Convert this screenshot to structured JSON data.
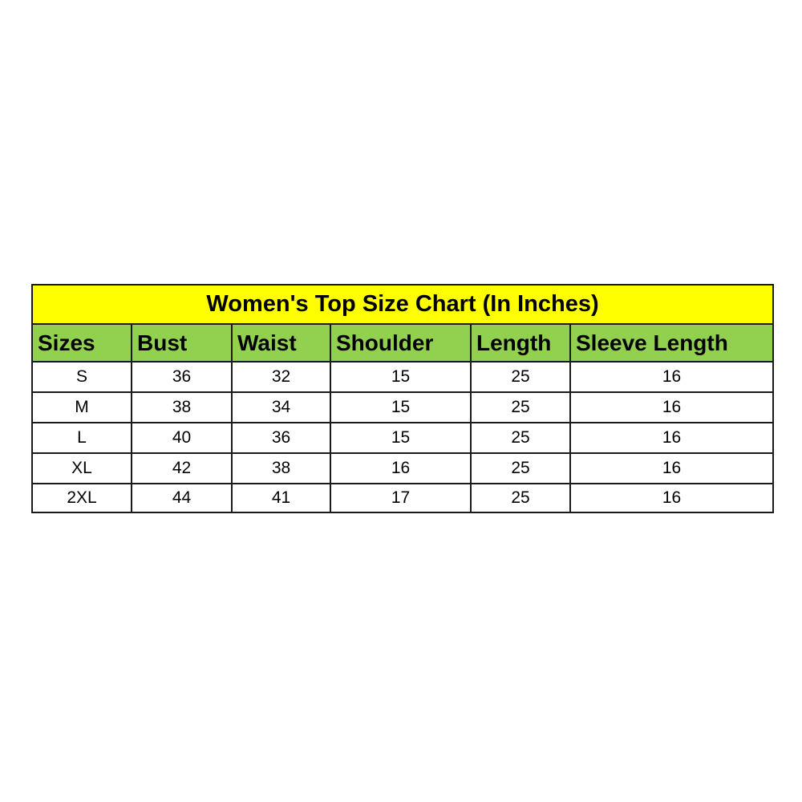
{
  "title": "Women's Top Size Chart (In Inches)",
  "colors": {
    "title_bg": "#FFFF00",
    "header_bg": "#92D050"
  },
  "columns": [
    "Sizes",
    "Bust",
    "Waist",
    "Shoulder",
    "Length",
    "Sleeve Length"
  ],
  "rows": [
    [
      "S",
      "36",
      "32",
      "15",
      "25",
      "16"
    ],
    [
      "M",
      "38",
      "34",
      "15",
      "25",
      "16"
    ],
    [
      "L",
      "40",
      "36",
      "15",
      "25",
      "16"
    ],
    [
      "XL",
      "42",
      "38",
      "16",
      "25",
      "16"
    ],
    [
      "2XL",
      "44",
      "41",
      "17",
      "25",
      "16"
    ]
  ]
}
